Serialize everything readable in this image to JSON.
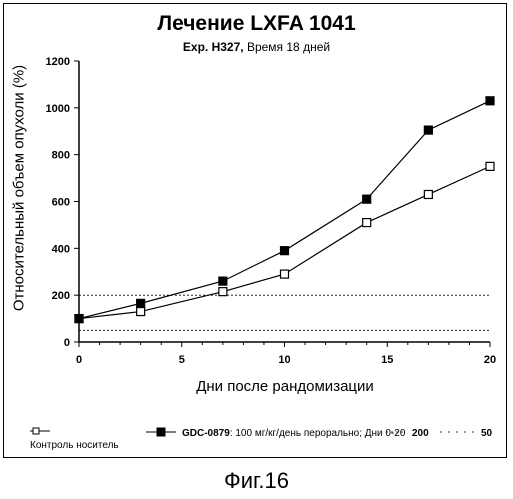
{
  "chart_data": {
    "type": "line",
    "title": "Лечение LXFA 1041",
    "subtitle_exp": "Exp. H327,",
    "subtitle_rest": "Время 18 дней",
    "xlabel": "Дни после рандомизации",
    "ylabel": "Относительный объем опухоли (%)",
    "xlim": [
      0,
      20
    ],
    "ylim": [
      0,
      1200
    ],
    "xticks": [
      0,
      5,
      10,
      15,
      20
    ],
    "yticks": [
      0,
      200,
      400,
      600,
      800,
      1000,
      1200
    ],
    "reference_lines": [
      200,
      50
    ],
    "grid": false,
    "series": [
      {
        "name": "Контроль носитель",
        "marker": "open-square",
        "x": [
          0,
          3,
          7,
          10,
          14,
          17,
          20
        ],
        "y": [
          100,
          130,
          215,
          290,
          510,
          630,
          750
        ]
      },
      {
        "name": "GDC-0879",
        "name_detail": "100 мг/кг/день перорально; Дни 0-20",
        "marker": "filled-square",
        "x": [
          0,
          3,
          7,
          10,
          14,
          17,
          20
        ],
        "y": [
          100,
          165,
          260,
          390,
          610,
          905,
          1030
        ]
      }
    ],
    "legend_extra": [
      "200",
      "50"
    ],
    "legend_position": "bottom"
  },
  "figure_caption": "Фиг.16"
}
